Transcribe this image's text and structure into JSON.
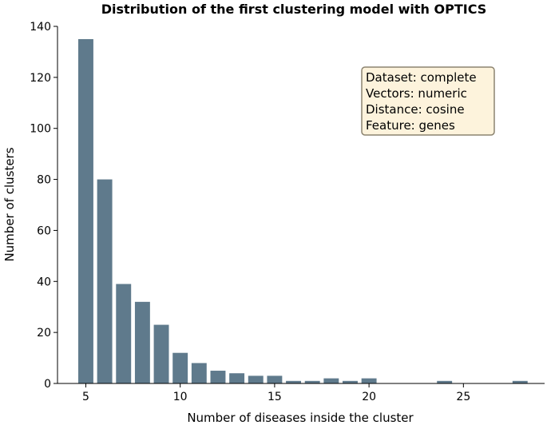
{
  "chart_data": {
    "type": "bar",
    "title": "Distribution of the first clustering model with OPTICS",
    "xlabel": "Number of diseases inside the cluster",
    "ylabel": "Number of clusters",
    "x": [
      5,
      6,
      7,
      8,
      9,
      10,
      11,
      12,
      13,
      14,
      15,
      16,
      17,
      18,
      19,
      20,
      24,
      28
    ],
    "values": [
      135,
      80,
      39,
      32,
      23,
      12,
      8,
      5,
      4,
      3,
      3,
      1,
      1,
      2,
      1,
      2,
      1,
      1
    ],
    "xlim": [
      3.5,
      29.3
    ],
    "ylim": [
      0,
      140
    ],
    "xticks": [
      5,
      10,
      15,
      20,
      25
    ],
    "yticks": [
      0,
      20,
      40,
      60,
      80,
      100,
      120,
      140
    ],
    "bar_color": "#5f7a8c",
    "grid": false,
    "annotation": {
      "lines": [
        "Dataset: complete",
        "Vectors: numeric",
        "Distance: cosine",
        "Feature: genes"
      ],
      "background": "#fdf3dc",
      "border": "#8c8470",
      "placement": "top-right"
    }
  }
}
